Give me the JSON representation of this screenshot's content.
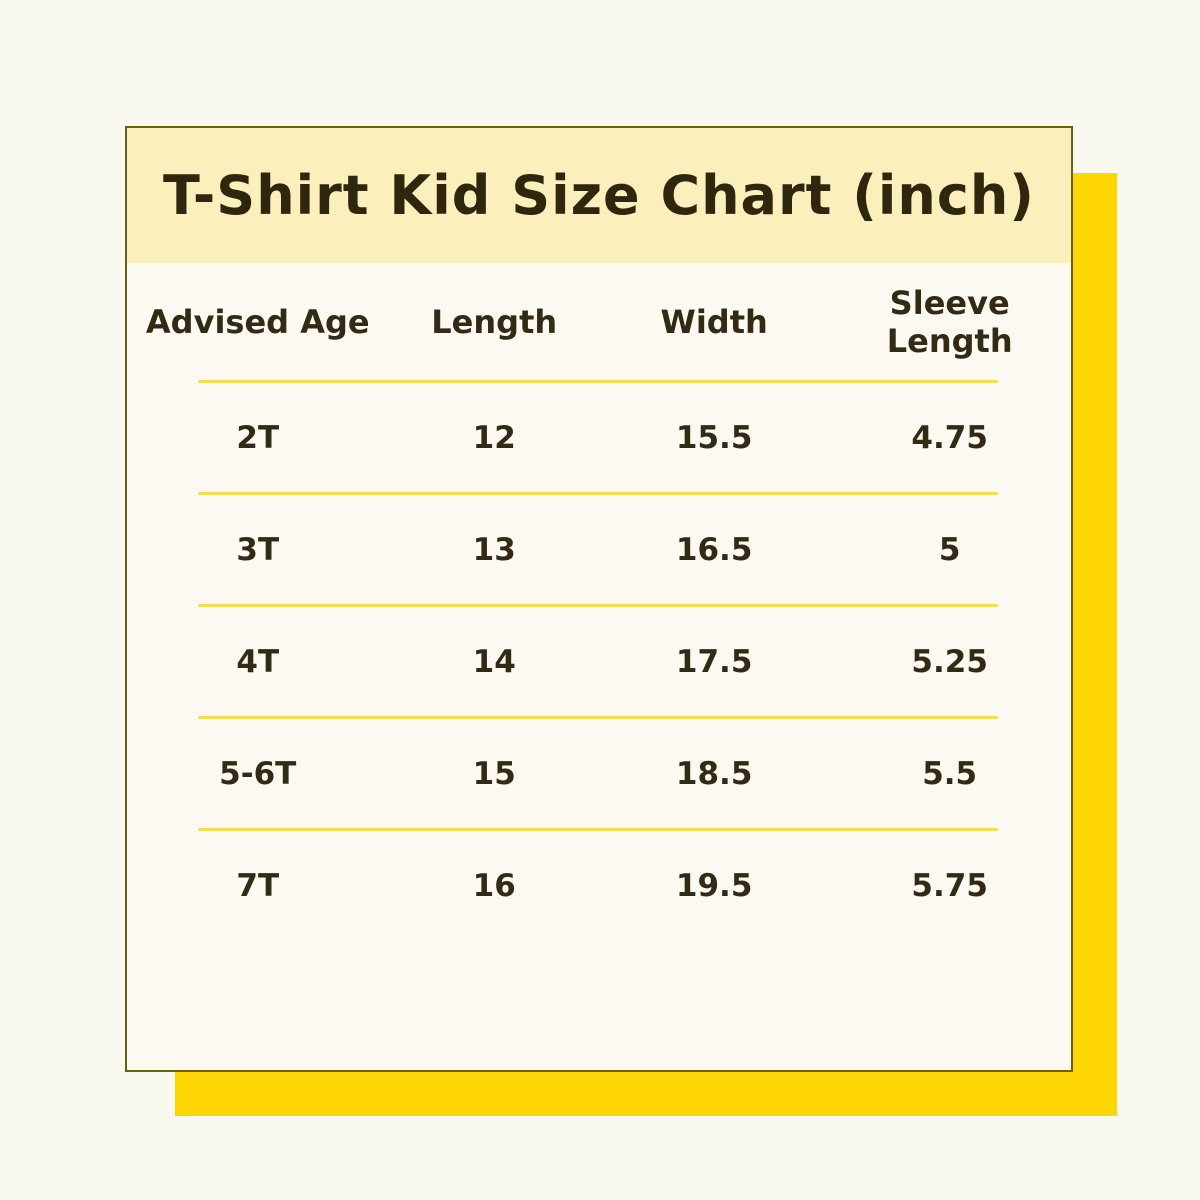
{
  "title": "T-Shirt Kid Size Chart (inch)",
  "colors": {
    "page_background": "#FAF9F0",
    "card_background": "#FBF9F1",
    "header_band": "#FBEFBC",
    "accent_square": "#FFD605",
    "card_border": "#6E5D15",
    "row_divider": "#F1DE52",
    "text": "#332A14"
  },
  "table": {
    "columns": [
      "Advised Age",
      "Length",
      "Width",
      "Sleeve Length"
    ],
    "rows": [
      [
        "2T",
        "12",
        "15.5",
        "4.75"
      ],
      [
        "3T",
        "13",
        "16.5",
        "5"
      ],
      [
        "4T",
        "14",
        "17.5",
        "5.25"
      ],
      [
        "5-6T",
        "15",
        "18.5",
        "5.5"
      ],
      [
        "7T",
        "16",
        "19.5",
        "5.75"
      ]
    ]
  },
  "chart_data": {
    "type": "table",
    "title": "T-Shirt Kid Size Chart (inch)",
    "columns": [
      "Advised Age",
      "Length",
      "Width",
      "Sleeve Length"
    ],
    "units": "inch",
    "rows": [
      {
        "advised_age": "2T",
        "length": 12,
        "width": 15.5,
        "sleeve_length": 4.75
      },
      {
        "advised_age": "3T",
        "length": 13,
        "width": 16.5,
        "sleeve_length": 5
      },
      {
        "advised_age": "4T",
        "length": 14,
        "width": 17.5,
        "sleeve_length": 5.25
      },
      {
        "advised_age": "5-6T",
        "length": 15,
        "width": 18.5,
        "sleeve_length": 5.5
      },
      {
        "advised_age": "7T",
        "length": 16,
        "width": 19.5,
        "sleeve_length": 5.75
      }
    ]
  }
}
